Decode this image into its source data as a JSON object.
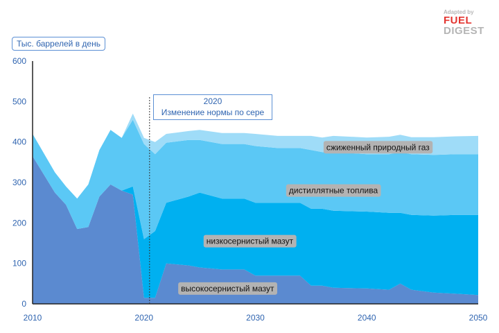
{
  "logo": {
    "line1": "Adapted by",
    "line2": "FUEL",
    "line3": "DIGEST"
  },
  "chart_data": {
    "type": "area",
    "stacked": true,
    "title": "",
    "ylabel": "Тыс. баррелей в день",
    "xlabel": "",
    "xlim": [
      2010,
      2050
    ],
    "ylim": [
      0,
      600
    ],
    "xticks": [
      2010,
      2020,
      2030,
      2040,
      2050
    ],
    "yticks": [
      0,
      100,
      200,
      300,
      400,
      500,
      600
    ],
    "grid": false,
    "annotation": {
      "x": 2020.5,
      "line1": "2020",
      "line2": "Изменение нормы по сере"
    },
    "x": [
      2010,
      2012,
      2013,
      2014,
      2015,
      2016,
      2017,
      2018,
      2019,
      2020,
      2021,
      2022,
      2024,
      2025,
      2027,
      2029,
      2030,
      2032,
      2034,
      2035,
      2036,
      2037,
      2040,
      2042,
      2043,
      2044,
      2046,
      2048,
      2050
    ],
    "series": [
      {
        "name": "высокосернистый мазут",
        "color": "#5b8ad0",
        "values": [
          365,
          275,
          245,
          185,
          190,
          265,
          295,
          280,
          270,
          15,
          15,
          100,
          95,
          90,
          85,
          85,
          70,
          70,
          70,
          45,
          45,
          40,
          38,
          35,
          50,
          35,
          28,
          25,
          22
        ]
      },
      {
        "name": "низкосернистый мазут",
        "color": "#00b0f0",
        "values": [
          0,
          0,
          0,
          0,
          0,
          0,
          0,
          0,
          20,
          145,
          165,
          150,
          170,
          185,
          175,
          175,
          180,
          180,
          180,
          190,
          190,
          190,
          190,
          190,
          175,
          185,
          190,
          195,
          198
        ]
      },
      {
        "name": "дистиллятные топлива",
        "color": "#5bc8f5",
        "values": [
          55,
          50,
          45,
          75,
          105,
          115,
          135,
          130,
          165,
          235,
          190,
          148,
          140,
          130,
          135,
          135,
          140,
          135,
          135,
          145,
          140,
          145,
          142,
          145,
          150,
          150,
          150,
          150,
          150
        ]
      },
      {
        "name": "сжиженный природный газ",
        "color": "#9fdcf8",
        "values": [
          0,
          0,
          0,
          0,
          0,
          0,
          0,
          0,
          15,
          15,
          30,
          22,
          22,
          25,
          27,
          27,
          30,
          30,
          30,
          35,
          36,
          40,
          41,
          43,
          43,
          42,
          44,
          44,
          45
        ]
      }
    ]
  }
}
